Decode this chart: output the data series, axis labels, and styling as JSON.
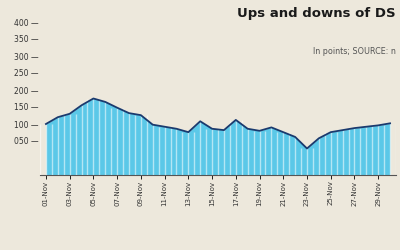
{
  "title": "Ups and downs of DS",
  "subtitle": "In points; SOURCE: n",
  "background_color": "#ede8dc",
  "fill_color": "#5bc8e8",
  "stripe_color": "#ffffff",
  "line_color": "#1a3a6e",
  "x_tick_labels": [
    "01-Nov",
    "03-Nov",
    "05-Nov",
    "07-Nov",
    "09-Nov",
    "11-Nov",
    "13-Nov",
    "15-Nov",
    "17-Nov",
    "19-Nov",
    "21-Nov",
    "23-Nov",
    "25-Nov",
    "27-Nov",
    "29-Nov"
  ],
  "values": [
    4100,
    4120,
    4130,
    4155,
    4175,
    4165,
    4148,
    4132,
    4126,
    4098,
    4092,
    4086,
    4076,
    4108,
    4086,
    4082,
    4112,
    4086,
    4080,
    4090,
    4076,
    4062,
    4028,
    4058,
    4076,
    4082,
    4088,
    4092,
    4096,
    4102
  ],
  "ymin": 3950,
  "ymax": 4450,
  "yticks": [
    4050,
    4100,
    4150,
    4200,
    4250,
    4300,
    4350,
    4400
  ],
  "ytick_labels": [
    "050 —",
    "100 —",
    "150 —",
    "200 —",
    "250 —",
    "300 —",
    "350 —",
    "400 —"
  ]
}
